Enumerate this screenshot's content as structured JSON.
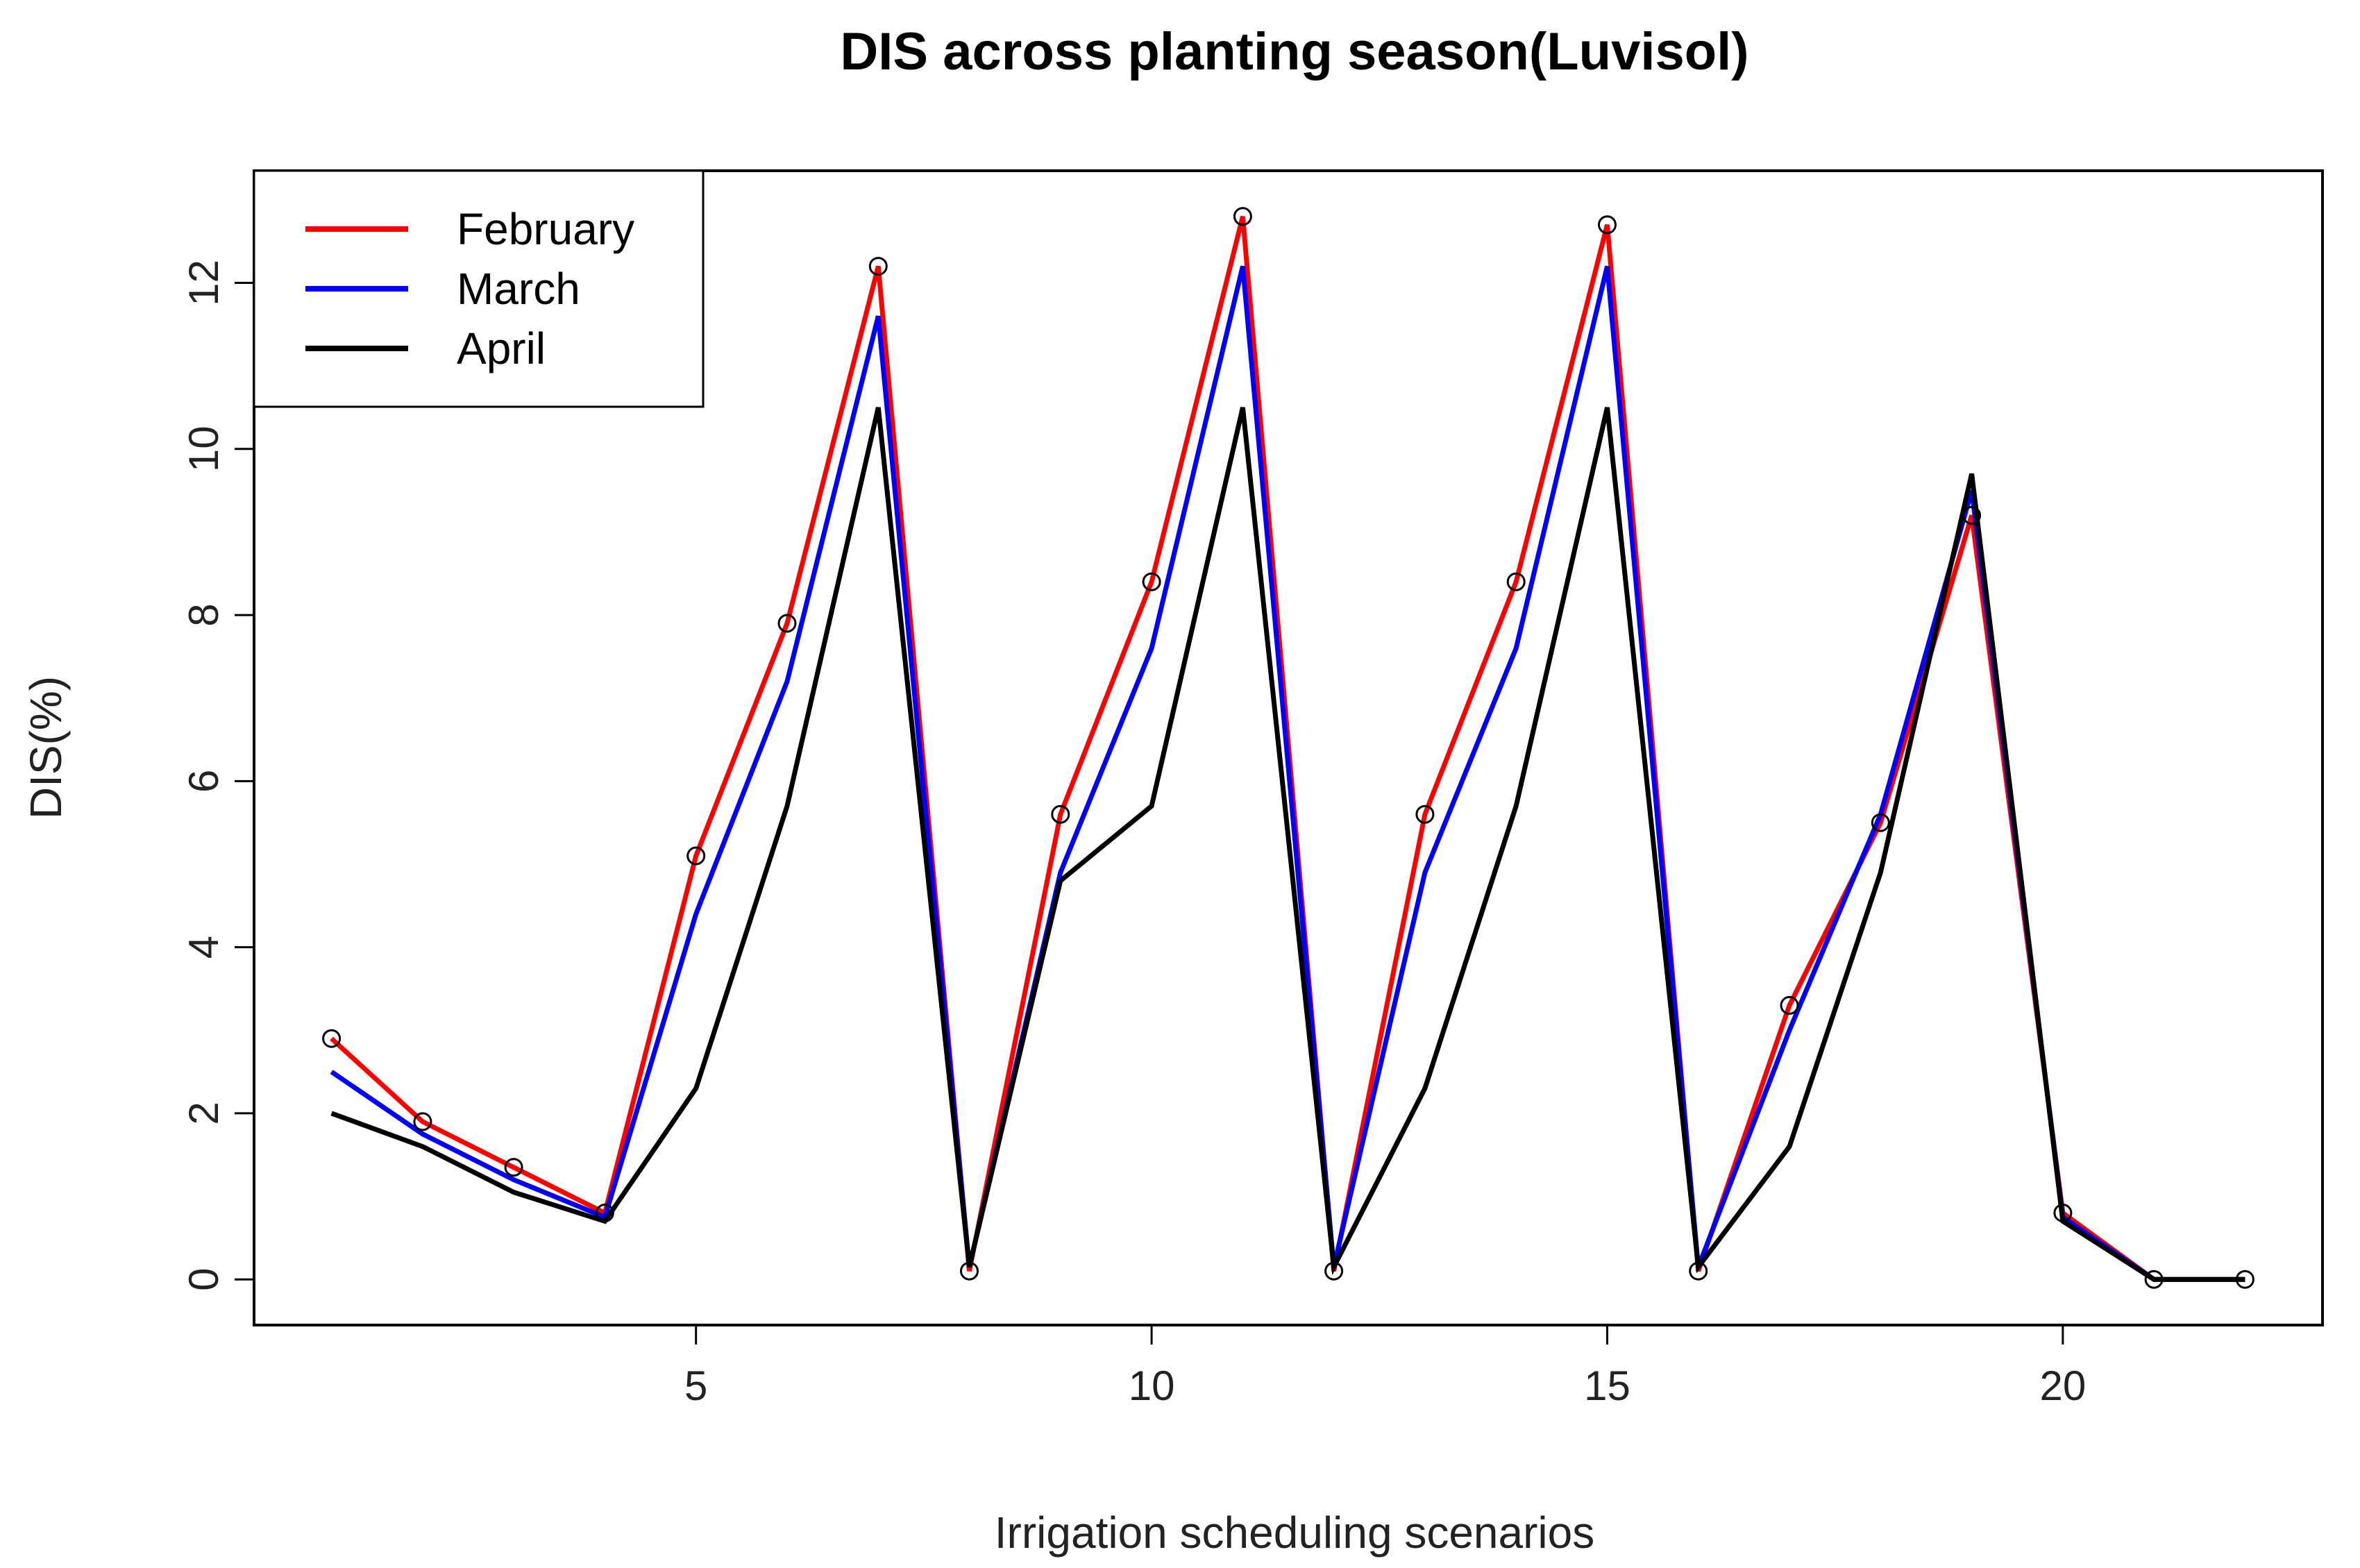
{
  "chart_data": {
    "type": "line",
    "title": "DIS across planting season(Luvisol)",
    "xlabel": "Irrigation scheduling scenarios",
    "ylabel": "DIS(%)",
    "xlim": [
      0.15,
      22.85
    ],
    "ylim": [
      -0.55,
      13.35
    ],
    "x_ticks": [
      5,
      10,
      15,
      20
    ],
    "x_tick_labels": [
      "5",
      "10",
      "15",
      "20"
    ],
    "y_ticks": [
      0,
      2,
      4,
      6,
      8,
      10,
      12
    ],
    "y_tick_labels": [
      "0",
      "2",
      "4",
      "6",
      "8",
      "10",
      "12"
    ],
    "legend_position": "top-left",
    "x": [
      1,
      2,
      3,
      4,
      5,
      6,
      7,
      8,
      9,
      10,
      11,
      12,
      13,
      14,
      15,
      16,
      17,
      18,
      19,
      20,
      21,
      22
    ],
    "series": [
      {
        "name": "February",
        "color": "#ff0000",
        "markers": true,
        "values": [
          2.9,
          1.9,
          1.35,
          0.8,
          5.1,
          7.9,
          12.2,
          0.1,
          5.6,
          8.4,
          12.8,
          0.1,
          5.6,
          8.4,
          12.7,
          0.1,
          3.3,
          5.5,
          9.2,
          0.8,
          0.0,
          0.0
        ]
      },
      {
        "name": "March",
        "color": "#0000ff",
        "markers": false,
        "values": [
          2.5,
          1.75,
          1.2,
          0.75,
          4.4,
          7.2,
          11.6,
          0.15,
          4.9,
          7.6,
          12.2,
          0.15,
          4.9,
          7.6,
          12.2,
          0.15,
          3.0,
          5.6,
          9.5,
          0.75,
          0.0,
          0.0
        ]
      },
      {
        "name": "April",
        "color": "#000000",
        "markers": false,
        "values": [
          2.0,
          1.6,
          1.05,
          0.7,
          2.3,
          5.7,
          10.5,
          0.15,
          4.8,
          5.7,
          10.5,
          0.15,
          2.3,
          5.7,
          10.5,
          0.15,
          1.6,
          4.9,
          9.7,
          0.7,
          0.0,
          0.0
        ]
      }
    ]
  }
}
